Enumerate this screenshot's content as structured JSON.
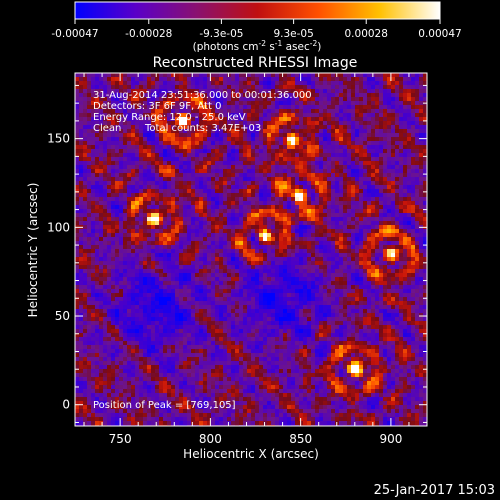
{
  "colorbar": {
    "tick_labels": [
      "-0.00047",
      "-0.00028",
      "-9.3e-05",
      "9.3e-05",
      "0.00028",
      "0.00047"
    ],
    "tick_values": [
      -0.00047,
      -0.00028,
      -9.3e-05,
      9.3e-05,
      0.00028,
      0.00047
    ],
    "range": [
      -0.00047,
      0.00047
    ],
    "units_main": "(photons cm",
    "units_exp1": "-2",
    "units_mid": " s",
    "units_exp2": "-1",
    "units_end": " asec",
    "units_exp3": "-2",
    "units_close": ")",
    "colors": [
      "#0000ff",
      "#5a00c8",
      "#8a1070",
      "#c01010",
      "#ff5000",
      "#ffc000",
      "#ffffff"
    ]
  },
  "chart_data": {
    "type": "heatmap",
    "title": "Reconstructed RHESSI Image",
    "xlabel": "Heliocentric X (arcsec)",
    "ylabel": "Heliocentric Y (arcsec)",
    "xlim": [
      725,
      920
    ],
    "ylim": [
      -12,
      187
    ],
    "xticks": [
      750,
      800,
      850,
      900
    ],
    "yticks": [
      0,
      50,
      100,
      150
    ],
    "annotations": [
      "31-Aug-2014 23:51:36.000 to 00:01:36.000",
      "Detectors: 3F 6F 9F, Att 0",
      "Energy Range: 12.0 - 25.0 keV",
      "Clean",
      "Total counts: 3.47E+03"
    ],
    "peak_text": "Position of Peak = [769,105]",
    "peak_position": [
      769,
      105
    ],
    "bright_sources": [
      {
        "x": 769,
        "y": 105
      },
      {
        "x": 830,
        "y": 95
      },
      {
        "x": 850,
        "y": 118
      },
      {
        "x": 845,
        "y": 150
      },
      {
        "x": 785,
        "y": 160
      },
      {
        "x": 900,
        "y": 85
      },
      {
        "x": 880,
        "y": 20
      }
    ],
    "dim_regions": [
      {
        "x": 770,
        "y": 55
      },
      {
        "x": 840,
        "y": 60
      }
    ]
  },
  "footer": {
    "date": "25-Jan-2017 15:03"
  }
}
